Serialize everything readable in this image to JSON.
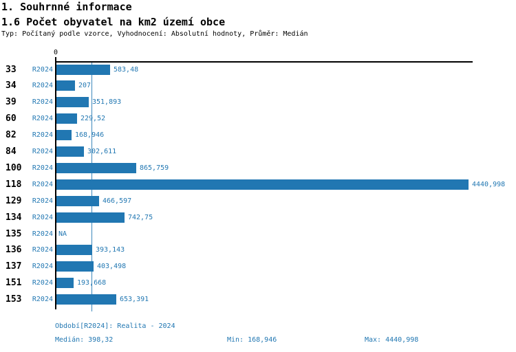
{
  "header": {
    "section_title": "1. Souhrnné informace",
    "chart_title": "1.6 Počet obyvatel na km2 území obce",
    "subtitle": "Typ: Počítaný podle vzorce, Vyhodnocení: Absolutní hodnoty, Průměr: Medián"
  },
  "colors": {
    "accent": "#2177b2",
    "median_line": "#3c87bb",
    "axis": "#000000",
    "background": "#ffffff",
    "category_text": "#000000"
  },
  "chart_data": {
    "type": "bar",
    "orientation": "horizontal",
    "title": "1.6 Počet obyvatel na km2 území obce",
    "series_label": "R2024",
    "axis_zero_label": "0",
    "categories": [
      "33",
      "34",
      "39",
      "60",
      "82",
      "84",
      "100",
      "118",
      "129",
      "134",
      "135",
      "136",
      "137",
      "151",
      "153"
    ],
    "values": [
      583.48,
      207,
      351.893,
      229.52,
      168.946,
      302.611,
      865.759,
      4440.998,
      466.597,
      742.75,
      null,
      393.143,
      403.498,
      193.668,
      653.391
    ],
    "value_labels": [
      "583,48",
      "207",
      "351,893",
      "229,52",
      "168,946",
      "302,611",
      "865,759",
      "4440,998",
      "466,597",
      "742,75",
      "NA",
      "393,143",
      "403,498",
      "193,668",
      "653,391"
    ],
    "xlim": [
      0,
      4440.998
    ],
    "median": 398.32,
    "min": 168.946,
    "max": 4440.998,
    "grid": false,
    "legend_position": "none",
    "median_line_shown": true
  },
  "footer": {
    "period": "Období[R2024]: Realita - 2024",
    "median": "Medián: 398,32",
    "min": "Min: 168,946",
    "max": "Max: 4440,998"
  }
}
